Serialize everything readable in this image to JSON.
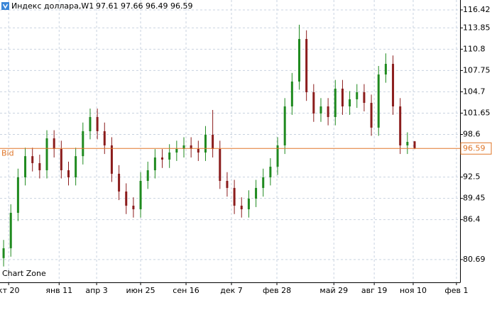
{
  "chart_data": {
    "type": "candlestick",
    "title": "Индекс доллара,W1",
    "watermark": "Chart Zone",
    "up_color": "#1f8a1f",
    "down_color": "#8b1c1c",
    "grid": true,
    "open": [
      80.9,
      82.31,
      87.38,
      92.46,
      95.49,
      94.49,
      93.47,
      98.04,
      96.52,
      93.47,
      92.46,
      95.49,
      99.06,
      101.09,
      99.06,
      97.03,
      92.97,
      90.43,
      88.4,
      87.89,
      91.95,
      93.47,
      95.3,
      95.0,
      96.01,
      96.52,
      97.03,
      96.52,
      96.01,
      98.55,
      96.52,
      91.95,
      90.94,
      88.4,
      87.89,
      89.41,
      90.94,
      92.46,
      93.98,
      97.03,
      102.61,
      106.17,
      112.26,
      104.64,
      101.6,
      102.61,
      101.09,
      105.15,
      102.61,
      103.63,
      104.64,
      103.12,
      99.57,
      107.18,
      108.7,
      102.61,
      97.03,
      97.61
    ],
    "high": [
      83.5,
      88.6,
      93.7,
      96.7,
      96.7,
      95.7,
      99.2,
      99.2,
      97.7,
      94.7,
      96.7,
      100.3,
      102.3,
      102.3,
      100.3,
      98.2,
      94.2,
      91.6,
      89.6,
      93.2,
      94.7,
      96.5,
      96.5,
      97.2,
      97.7,
      98.2,
      98.2,
      97.7,
      99.8,
      102.1,
      97.7,
      93.2,
      92.1,
      89.6,
      90.6,
      92.1,
      93.7,
      95.2,
      98.2,
      103.8,
      107.4,
      114.3,
      113.5,
      105.8,
      103.8,
      103.8,
      106.4,
      106.4,
      104.8,
      105.8,
      105.8,
      104.3,
      108.4,
      110.2,
      109.9,
      103.8,
      98.9,
      97.66
    ],
    "low": [
      79.7,
      81.1,
      86.2,
      91.3,
      93.3,
      92.3,
      92.3,
      95.3,
      92.3,
      91.3,
      91.3,
      94.3,
      97.9,
      97.9,
      95.8,
      91.8,
      89.2,
      87.2,
      86.7,
      86.7,
      90.8,
      92.3,
      93.8,
      93.8,
      94.8,
      95.3,
      95.3,
      94.8,
      94.8,
      95.3,
      90.8,
      89.7,
      87.2,
      86.7,
      86.7,
      88.2,
      89.7,
      91.3,
      92.8,
      95.8,
      101.4,
      105.0,
      103.4,
      100.4,
      100.4,
      99.9,
      99.9,
      101.4,
      101.4,
      102.4,
      101.9,
      98.4,
      98.4,
      106.0,
      101.4,
      95.8,
      95.8,
      96.49
    ],
    "close": [
      82.31,
      87.38,
      92.46,
      95.49,
      94.49,
      93.47,
      98.04,
      96.52,
      93.47,
      92.46,
      95.49,
      99.06,
      101.09,
      99.06,
      97.03,
      92.97,
      90.43,
      88.4,
      87.89,
      91.95,
      93.47,
      95.3,
      95.0,
      96.01,
      96.52,
      97.03,
      96.52,
      96.01,
      98.55,
      96.52,
      91.95,
      90.94,
      88.4,
      87.89,
      89.41,
      90.94,
      92.46,
      93.98,
      97.03,
      102.61,
      106.17,
      112.26,
      104.64,
      101.6,
      102.61,
      101.09,
      105.15,
      102.61,
      103.63,
      104.64,
      103.12,
      99.57,
      107.18,
      108.7,
      102.61,
      97.03,
      97.53,
      96.59
    ],
    "ylim": [
      77.43,
      117.84
    ],
    "yticks": [
      116.42,
      113.85,
      110.8,
      107.75,
      104.7,
      101.65,
      98.6,
      92.5,
      89.45,
      86.4,
      80.69
    ],
    "xlim": [
      0,
      63.8
    ],
    "xticks": [
      {
        "value": 1.2,
        "label": "кт 20"
      },
      {
        "value": 8.2,
        "label": "янв 11"
      },
      {
        "value": 13.4,
        "label": "апр 3"
      },
      {
        "value": 19.5,
        "label": "июн 25"
      },
      {
        "value": 25.8,
        "label": "сен 16"
      },
      {
        "value": 32.1,
        "label": "дек 7"
      },
      {
        "value": 38.4,
        "label": "фев 28"
      },
      {
        "value": 46.3,
        "label": "май 29"
      },
      {
        "value": 51.9,
        "label": "авг 19"
      },
      {
        "value": 57.3,
        "label": "ноя 10"
      },
      {
        "value": 63.3,
        "label": "фев 1"
      }
    ],
    "bid": {
      "label": "Bid",
      "value": 96.59,
      "color": "#e0772a"
    }
  }
}
